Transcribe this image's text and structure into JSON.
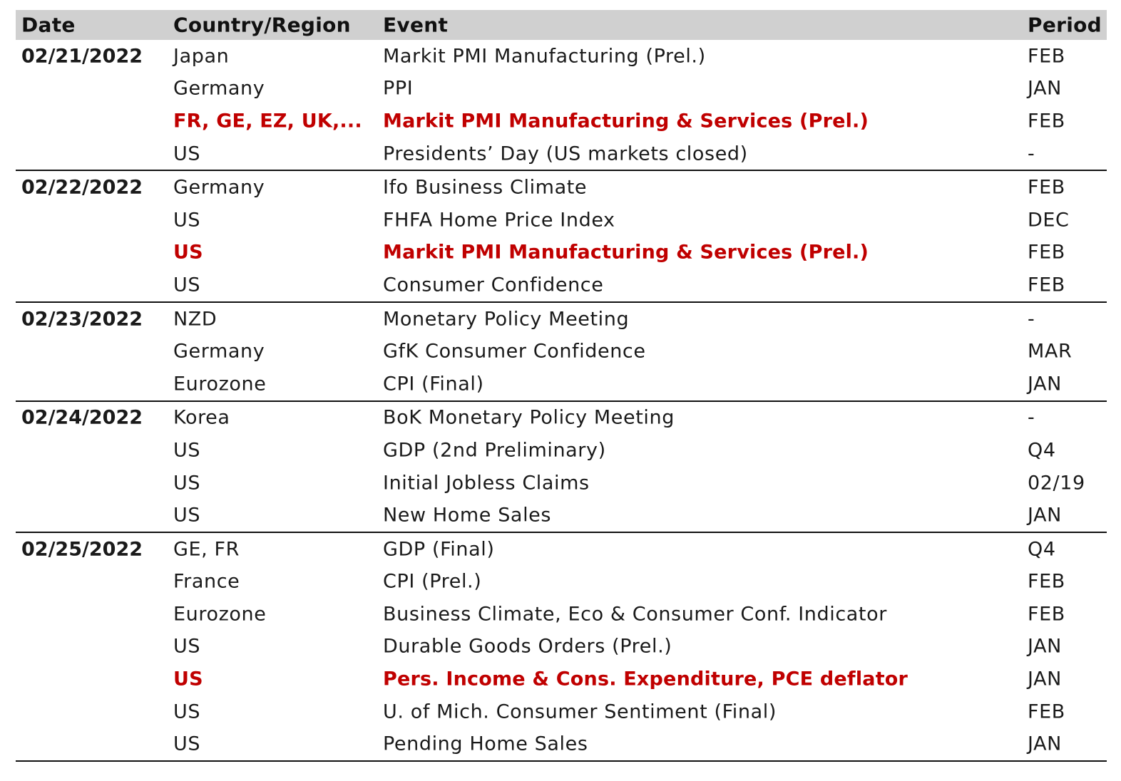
{
  "header": {
    "date": "Date",
    "country": "Country/Region",
    "event": "Event",
    "period": "Period"
  },
  "highlight_color": "#c00000",
  "header_background": "#d0d0d0",
  "groups": [
    {
      "date": "02/21/2022",
      "rows": [
        {
          "country": "Japan",
          "event": "Markit PMI Manufacturing (Prel.)",
          "period": "FEB",
          "highlight": false
        },
        {
          "country": "Germany",
          "event": "PPI",
          "period": "JAN",
          "highlight": false
        },
        {
          "country": "FR, GE, EZ, UK,...",
          "event": "Markit PMI Manufacturing & Services (Prel.)",
          "period": "FEB",
          "highlight": true
        },
        {
          "country": "US",
          "event": "Presidents’ Day (US markets closed)",
          "period": "-",
          "highlight": false
        }
      ]
    },
    {
      "date": "02/22/2022",
      "rows": [
        {
          "country": "Germany",
          "event": "Ifo Business Climate",
          "period": "FEB",
          "highlight": false
        },
        {
          "country": "US",
          "event": "FHFA Home Price Index",
          "period": "DEC",
          "highlight": false
        },
        {
          "country": "US",
          "event": "Markit PMI Manufacturing & Services (Prel.)",
          "period": "FEB",
          "highlight": true
        },
        {
          "country": "US",
          "event": "Consumer Confidence",
          "period": "FEB",
          "highlight": false
        }
      ]
    },
    {
      "date": "02/23/2022",
      "rows": [
        {
          "country": "NZD",
          "event": "Monetary Policy Meeting",
          "period": "-",
          "highlight": false
        },
        {
          "country": "Germany",
          "event": "GfK Consumer Confidence",
          "period": "MAR",
          "highlight": false
        },
        {
          "country": "Eurozone",
          "event": "CPI (Final)",
          "period": "JAN",
          "highlight": false
        }
      ]
    },
    {
      "date": "02/24/2022",
      "rows": [
        {
          "country": "Korea",
          "event": "BoK Monetary Policy Meeting",
          "period": "-",
          "highlight": false
        },
        {
          "country": "US",
          "event": "GDP (2nd Preliminary)",
          "period": "Q4",
          "highlight": false
        },
        {
          "country": "US",
          "event": "Initial Jobless Claims",
          "period": "02/19",
          "highlight": false
        },
        {
          "country": "US",
          "event": "New Home Sales",
          "period": "JAN",
          "highlight": false
        }
      ]
    },
    {
      "date": "02/25/2022",
      "rows": [
        {
          "country": "GE, FR",
          "event": "GDP (Final)",
          "period": "Q4",
          "highlight": false
        },
        {
          "country": "France",
          "event": "CPI (Prel.)",
          "period": "FEB",
          "highlight": false
        },
        {
          "country": "Eurozone",
          "event": "Business Climate, Eco & Consumer Conf. Indicator",
          "period": "FEB",
          "highlight": false
        },
        {
          "country": "US",
          "event": "Durable Goods Orders (Prel.)",
          "period": "JAN",
          "highlight": false
        },
        {
          "country": "US",
          "event": "Pers. Income & Cons. Expenditure, PCE deflator",
          "period": "JAN",
          "highlight": true
        },
        {
          "country": "US",
          "event": "U. of Mich. Consumer Sentiment (Final)",
          "period": "FEB",
          "highlight": false
        },
        {
          "country": "US",
          "event": "Pending Home Sales",
          "period": "JAN",
          "highlight": false
        }
      ]
    }
  ]
}
